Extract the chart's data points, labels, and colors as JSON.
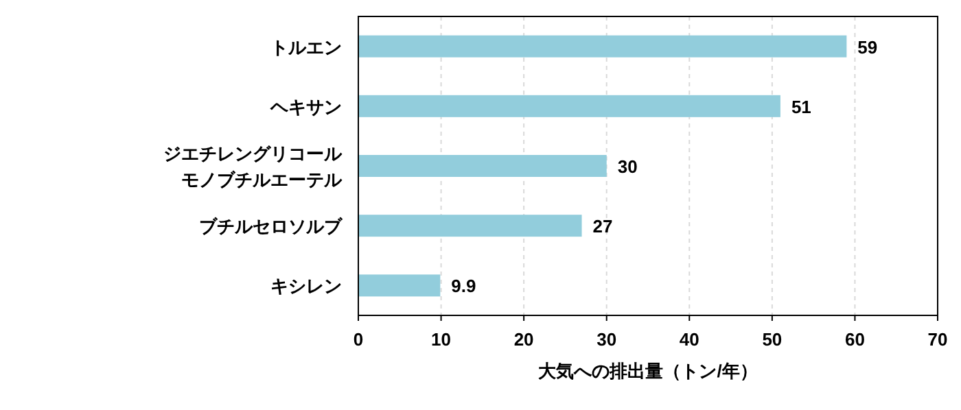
{
  "chart_data": {
    "type": "bar",
    "orientation": "horizontal",
    "categories": [
      "トルエン",
      "ヘキサン",
      "ジエチレングリコールモノブチルエーテル",
      "ブチルセロソルブ",
      "キシレン"
    ],
    "values": [
      59,
      51,
      30,
      27,
      9.9
    ],
    "color": "#92cddc",
    "data_labels": true,
    "xlabel": "大気への排出量（トン/年）",
    "xlim": [
      0,
      70
    ],
    "xticks": [
      0,
      10,
      20,
      30,
      40,
      50,
      60,
      70
    ],
    "grid": "x"
  }
}
